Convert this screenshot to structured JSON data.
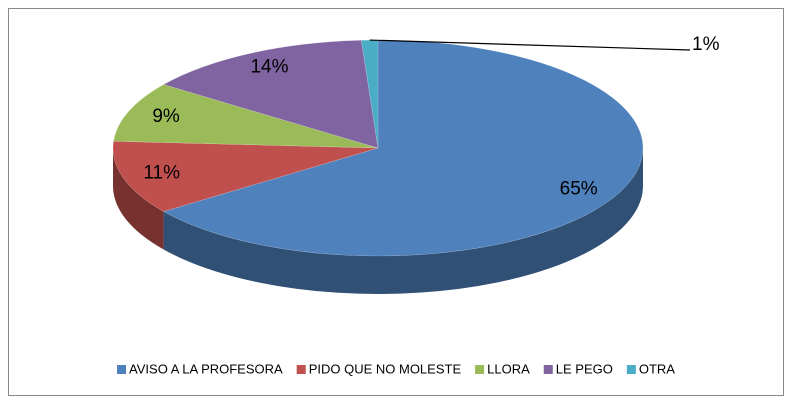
{
  "chart_data": {
    "type": "pie",
    "categories": [
      "AVISO A LA PROFESORA",
      "PIDO QUE NO MOLESTE",
      "LLORA",
      "LE PEGO",
      "OTRA"
    ],
    "values": [
      65,
      11,
      9,
      14,
      1
    ],
    "value_labels": [
      "65%",
      "11%",
      "9%",
      "14%",
      "1%"
    ],
    "colors": [
      "#4f81bd",
      "#c0504d",
      "#9bbb59",
      "#8064a2",
      "#4bacc6"
    ],
    "legend": "bottom"
  }
}
